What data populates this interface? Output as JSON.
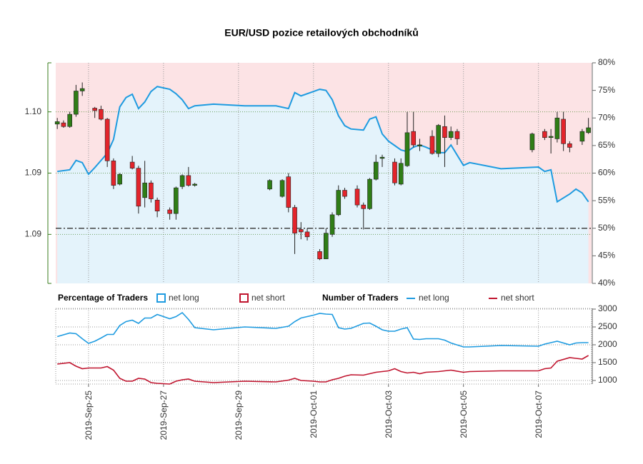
{
  "chart_data": {
    "type": "candlestick",
    "title": "EUR/USD pozice retailových obchodníků",
    "candles": {
      "x": [
        "2019-09-24T04:00",
        "2019-09-24T08:00",
        "2019-09-24T12:00",
        "2019-09-24T16:00",
        "2019-09-24T20:00",
        "2019-09-25T04:00",
        "2019-09-25T08:00",
        "2019-09-25T12:00",
        "2019-09-25T16:00",
        "2019-09-25T20:00",
        "2019-09-26T04:00",
        "2019-09-26T08:00",
        "2019-09-26T12:00",
        "2019-09-26T16:00",
        "2019-09-26T20:00",
        "2019-09-27T04:00",
        "2019-09-27T08:00",
        "2019-09-27T12:00",
        "2019-09-27T16:00",
        "2019-09-27T20:00",
        "2019-09-29T20:00",
        "2019-09-30T04:00",
        "2019-09-30T08:00",
        "2019-09-30T12:00",
        "2019-09-30T16:00",
        "2019-09-30T20:00",
        "2019-10-01T04:00",
        "2019-10-01T08:00",
        "2019-10-01T12:00",
        "2019-10-01T16:00",
        "2019-10-01T20:00",
        "2019-10-02T04:00",
        "2019-10-02T08:00",
        "2019-10-02T12:00",
        "2019-10-02T16:00",
        "2019-10-02T20:00",
        "2019-10-03T04:00",
        "2019-10-03T08:00",
        "2019-10-03T12:00",
        "2019-10-03T16:00",
        "2019-10-03T20:00",
        "2019-10-04T04:00",
        "2019-10-04T08:00",
        "2019-10-04T12:00",
        "2019-10-04T16:00",
        "2019-10-04T20:00",
        "2019-10-06T20:00",
        "2019-10-07T04:00",
        "2019-10-07T08:00",
        "2019-10-07T12:00",
        "2019-10-07T16:00",
        "2019-10-07T20:00",
        "2019-10-08T04:00",
        "2019-10-08T08:00"
      ],
      "open": [
        1.099,
        1.0991,
        1.0988,
        1.0998,
        1.1017,
        1.1003,
        1.1002,
        1.0994,
        1.096,
        1.0941,
        1.0959,
        1.0954,
        1.093,
        1.0942,
        1.0928,
        1.092,
        1.0917,
        1.0939,
        1.0948,
        1.094,
        1.0937,
        1.0931,
        1.0947,
        1.0922,
        1.0904,
        1.0902,
        1.0886,
        1.088,
        1.09,
        1.0916,
        1.0936,
        1.0937,
        1.0924,
        1.0921,
        1.0945,
        1.0962,
        1.0959,
        1.0941,
        1.0956,
        1.0984,
        1.0972,
        1.098,
        1.0966,
        1.0988,
        1.0979,
        1.0984,
        1.0969,
        1.0984,
        1.0979,
        1.0978,
        1.0994,
        1.0974,
        1.0976,
        1.0983
      ],
      "high": [
        1.0995,
        1.0993,
        1.1,
        1.1022,
        1.1024,
        1.1004,
        1.1005,
        1.0995,
        1.0962,
        1.095,
        1.0964,
        1.0956,
        1.096,
        1.0944,
        1.093,
        1.0922,
        1.0939,
        1.0949,
        1.0955,
        1.0942,
        1.0945,
        1.0945,
        1.095,
        1.0924,
        1.091,
        1.0905,
        1.0888,
        1.0905,
        1.0918,
        1.094,
        1.0938,
        1.094,
        1.0926,
        1.0946,
        1.0965,
        1.0965,
        1.0962,
        1.0962,
        1.1,
        1.1,
        1.0978,
        1.0985,
        1.099,
        1.0997,
        1.0988,
        1.0986,
        1.0983,
        1.0986,
        1.0986,
        1.1,
        1.1,
        1.0976,
        1.0986,
        1.0995
      ],
      "low": [
        1.0986,
        1.0987,
        1.0987,
        1.0996,
        1.1013,
        1.0995,
        1.0993,
        1.0955,
        1.0937,
        1.094,
        1.0953,
        1.0917,
        1.0922,
        1.0926,
        1.0914,
        1.0912,
        1.0912,
        1.0937,
        1.0939,
        1.0939,
        1.0936,
        1.093,
        1.0918,
        1.0884,
        1.0896,
        1.0895,
        1.0879,
        1.088,
        1.0898,
        1.0915,
        1.0929,
        1.0922,
        1.0904,
        1.092,
        1.0944,
        1.0955,
        1.094,
        1.094,
        1.0955,
        1.0971,
        1.0968,
        1.0965,
        1.0963,
        1.0955,
        1.0977,
        1.0973,
        1.0967,
        1.0977,
        1.0966,
        1.0975,
        1.0968,
        1.0967,
        1.0973,
        1.0982
      ],
      "close": [
        1.0992,
        1.0988,
        1.0998,
        1.1017,
        1.1019,
        1.1001,
        1.0994,
        1.096,
        1.094,
        1.0949,
        1.0954,
        1.0923,
        1.0942,
        1.0929,
        1.0919,
        1.0917,
        1.0938,
        1.0948,
        1.094,
        1.0941,
        1.0944,
        1.0944,
        1.0922,
        1.0901,
        1.0902,
        1.0898,
        1.088,
        1.0901,
        1.0916,
        1.0936,
        1.0931,
        1.0924,
        1.0921,
        1.0945,
        1.0959,
        1.0963,
        1.0942,
        1.0958,
        1.0983,
        1.0973,
        1.0973,
        1.0966,
        1.0989,
        1.0979,
        1.0984,
        1.0978,
        1.0982,
        1.0979,
        1.098,
        1.0995,
        1.0974,
        1.0971,
        1.0984,
        1.0987
      ],
      "up_color": "#2f7d16",
      "down_color": "#e3242b"
    },
    "xlim": [
      "2019-09-24T03:00",
      "2019-10-08T10:00"
    ],
    "xticks": [
      {
        "value": "2019-09-25T00:00",
        "label": "2019-Sep-25"
      },
      {
        "value": "2019-09-27T00:00",
        "label": "2019-Sep-27"
      },
      {
        "value": "2019-09-29T00:00",
        "label": "2019-Sep-29"
      },
      {
        "value": "2019-10-01T00:00",
        "label": "2019-Oct-01"
      },
      {
        "value": "2019-10-03T00:00",
        "label": "2019-Oct-03"
      },
      {
        "value": "2019-10-05T00:00",
        "label": "2019-Oct-05"
      },
      {
        "value": "2019-10-07T00:00",
        "label": "2019-Oct-07"
      }
    ],
    "ylim": [
      1.086,
      1.104
    ],
    "yticks": [
      {
        "value": 1.1,
        "label": "1.10"
      },
      {
        "value": 1.095,
        "label": "1.09"
      },
      {
        "value": 1.09,
        "label": "1.09"
      }
    ],
    "tick_color": "#3a7d1e",
    "y2lim": [
      40,
      80
    ],
    "y2ticks": [
      {
        "value": 40,
        "label": "40%"
      },
      {
        "value": 45,
        "label": "45%"
      },
      {
        "value": 50,
        "label": "50%"
      },
      {
        "value": 55,
        "label": "55%"
      },
      {
        "value": 60,
        "label": "60%"
      },
      {
        "value": 65,
        "label": "65%"
      },
      {
        "value": 70,
        "label": "70%"
      },
      {
        "value": 75,
        "label": "75%"
      },
      {
        "value": 80,
        "label": "80%"
      }
    ],
    "times": [
      "2019-09-24T04:00",
      "2019-09-24T12:00",
      "2019-09-24T16:00",
      "2019-09-24T20:00",
      "2019-09-25T00:00",
      "2019-09-25T04:00",
      "2019-09-25T08:00",
      "2019-09-25T12:00",
      "2019-09-25T16:00",
      "2019-09-25T20:00",
      "2019-09-26T00:00",
      "2019-09-26T04:00",
      "2019-09-26T08:00",
      "2019-09-26T12:00",
      "2019-09-26T16:00",
      "2019-09-26T20:00",
      "2019-09-27T04:00",
      "2019-09-27T08:00",
      "2019-09-27T12:00",
      "2019-09-27T16:00",
      "2019-09-27T20:00",
      "2019-09-28T08:00",
      "2019-09-29T04:00",
      "2019-09-30T00:00",
      "2019-09-30T08:00",
      "2019-09-30T12:00",
      "2019-09-30T16:00",
      "2019-10-01T00:00",
      "2019-10-01T04:00",
      "2019-10-01T08:00",
      "2019-10-01T12:00",
      "2019-10-01T16:00",
      "2019-10-01T20:00",
      "2019-10-02T00:00",
      "2019-10-02T08:00",
      "2019-10-02T12:00",
      "2019-10-02T16:00",
      "2019-10-02T20:00",
      "2019-10-03T00:00",
      "2019-10-03T04:00",
      "2019-10-03T08:00",
      "2019-10-03T12:00",
      "2019-10-03T16:00",
      "2019-10-03T20:00",
      "2019-10-04T00:00",
      "2019-10-04T08:00",
      "2019-10-04T12:00",
      "2019-10-04T16:00",
      "2019-10-05T00:00",
      "2019-10-05T04:00",
      "2019-10-06T00:00",
      "2019-10-07T00:00",
      "2019-10-07T04:00",
      "2019-10-07T08:00",
      "2019-10-07T12:00",
      "2019-10-07T20:00",
      "2019-10-08T00:00",
      "2019-10-08T04:00",
      "2019-10-08T08:00"
    ],
    "percentage_values": [
      60.3,
      60.6,
      62.3,
      61.9,
      59.8,
      61.0,
      62.3,
      63.6,
      66.1,
      72.0,
      73.7,
      74.3,
      71.7,
      72.9,
      74.8,
      75.7,
      75.2,
      74.4,
      73.3,
      71.7,
      72.2,
      72.5,
      72.2,
      72.2,
      71.7,
      74.6,
      74.0,
      74.8,
      75.2,
      75.0,
      73.3,
      70.4,
      68.6,
      68.0,
      67.8,
      69.8,
      70.2,
      67.1,
      65.8,
      65.0,
      64.2,
      63.9,
      64.7,
      65.1,
      64.7,
      63.7,
      63.7,
      65.1,
      61.4,
      61.9,
      60.8,
      61.1,
      60.3,
      60.6,
      54.8,
      56.2,
      57.1,
      56.4,
      54.8
    ],
    "percentage_title": "Percentage of Traders",
    "percentage_legend": [
      {
        "name": "net long",
        "color": "#1e9be0",
        "fill": "#e4f3fb"
      },
      {
        "name": "net short",
        "color": "#c0142e",
        "fill": "#fce3e5"
      }
    ],
    "count_title": "Number of Traders",
    "count_series": [
      {
        "name": "net long",
        "color": "#1e9be0",
        "values": [
          2230,
          2330,
          2310,
          2170,
          2040,
          2100,
          2190,
          2290,
          2290,
          2540,
          2650,
          2690,
          2600,
          2750,
          2750,
          2850,
          2730,
          2790,
          2900,
          2710,
          2480,
          2420,
          2500,
          2460,
          2520,
          2650,
          2750,
          2830,
          2880,
          2860,
          2850,
          2480,
          2440,
          2460,
          2600,
          2610,
          2520,
          2420,
          2380,
          2380,
          2440,
          2480,
          2160,
          2150,
          2170,
          2170,
          2130,
          2050,
          1940,
          1940,
          1980,
          1960,
          2020,
          2060,
          2100,
          2000,
          2050,
          2060,
          2060
        ]
      },
      {
        "name": "net short",
        "color": "#c0142e",
        "values": [
          1460,
          1500,
          1400,
          1330,
          1350,
          1350,
          1350,
          1390,
          1290,
          1060,
          980,
          980,
          1060,
          1040,
          940,
          920,
          900,
          980,
          1020,
          1040,
          980,
          940,
          980,
          960,
          1010,
          1060,
          1000,
          980,
          960,
          960,
          1020,
          1060,
          1120,
          1160,
          1150,
          1190,
          1230,
          1250,
          1270,
          1330,
          1250,
          1210,
          1230,
          1190,
          1230,
          1250,
          1270,
          1290,
          1230,
          1250,
          1270,
          1270,
          1330,
          1350,
          1540,
          1640,
          1620,
          1600,
          1700
        ]
      }
    ],
    "y3lim": [
      900,
      3020
    ],
    "y3ticks": [
      1000,
      1500,
      2000,
      2500,
      3000
    ],
    "grid": true
  }
}
